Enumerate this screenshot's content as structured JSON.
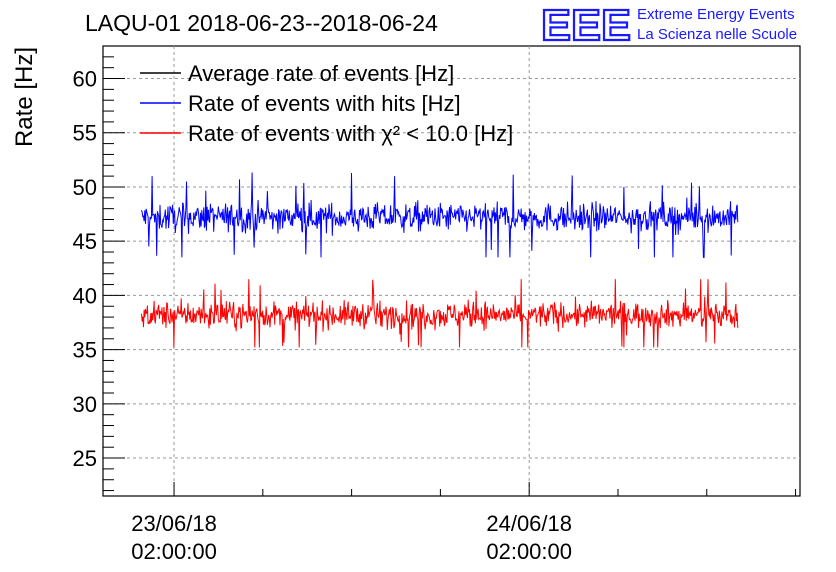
{
  "title": "LAQU-01 2018-06-23--2018-06-24",
  "logo": {
    "text": "EEE",
    "line1": "Extreme Energy Events",
    "line2": "La Scienza nelle Scuole",
    "color": "#1a1aff"
  },
  "chart_data": {
    "type": "line",
    "title": "LAQU-01 2018-06-23--2018-06-24",
    "xlabel": "",
    "ylabel": "Rate [Hz]",
    "ylim": [
      21.5,
      63
    ],
    "xlim_hours": [
      -4.8,
      42.3
    ],
    "x_start": "2018-06-22 20:30:00",
    "x_end": "2018-06-24 17:00:00",
    "grid": true,
    "legend_position": "top-left",
    "yticks": [
      25,
      30,
      35,
      40,
      45,
      50,
      55,
      60
    ],
    "xticks": [
      {
        "date": "23/06/18",
        "time": "02:00:00"
      },
      {
        "date": "24/06/18",
        "time": "02:00:00"
      }
    ],
    "series": [
      {
        "name": "Average rate of events [Hz]",
        "color": "#000000",
        "mean": null,
        "values": []
      },
      {
        "name": "Rate of events with hits [Hz]",
        "color": "#0000ff",
        "mean": 47.2,
        "spread": 1.2,
        "min": 43.5,
        "max": 51.8
      },
      {
        "name": "Rate of events with χ² < 10.0 [Hz]",
        "color": "#ff0000",
        "mean": 38.2,
        "spread": 1.1,
        "min": 35.2,
        "max": 41.5
      }
    ]
  }
}
